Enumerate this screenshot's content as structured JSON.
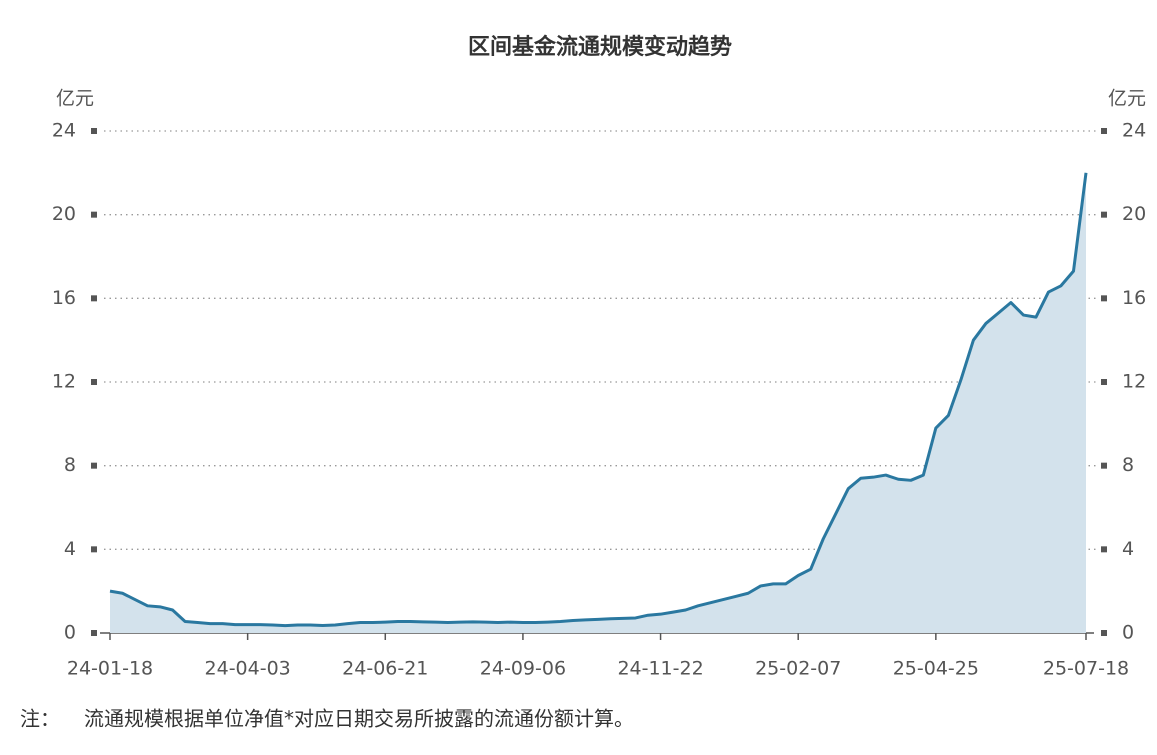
{
  "chart_data": {
    "type": "area",
    "title": "区间基金流通规模变动趋势",
    "y_label": "亿元",
    "y2_label": "亿元",
    "categories": [
      "24-01-18",
      null,
      null,
      null,
      null,
      null,
      null,
      null,
      null,
      null,
      null,
      "24-04-03",
      null,
      null,
      null,
      null,
      null,
      null,
      null,
      null,
      null,
      null,
      "24-06-21",
      null,
      null,
      null,
      null,
      null,
      null,
      null,
      null,
      null,
      null,
      "24-09-06",
      null,
      null,
      null,
      null,
      null,
      null,
      null,
      null,
      null,
      null,
      "24-11-22",
      null,
      null,
      null,
      null,
      null,
      null,
      null,
      null,
      null,
      null,
      "25-02-07",
      null,
      null,
      null,
      null,
      null,
      null,
      null,
      null,
      null,
      null,
      "25-04-25",
      null,
      null,
      null,
      null,
      null,
      null,
      null,
      null,
      null,
      null,
      null,
      "25-07-18"
    ],
    "series": [
      {
        "color": "#2a78a0",
        "fill": "#d3e2ec",
        "axis": "y",
        "values": [
          2.0,
          1.9,
          1.6,
          1.3,
          1.25,
          1.1,
          0.55,
          0.5,
          0.45,
          0.45,
          0.4,
          0.4,
          0.4,
          0.38,
          0.35,
          0.38,
          0.38,
          0.36,
          0.38,
          0.45,
          0.5,
          0.5,
          0.52,
          0.55,
          0.55,
          0.53,
          0.52,
          0.5,
          0.52,
          0.53,
          0.52,
          0.5,
          0.52,
          0.5,
          0.5,
          0.52,
          0.55,
          0.6,
          0.63,
          0.65,
          0.68,
          0.7,
          0.72,
          0.85,
          0.9,
          1.0,
          1.1,
          1.3,
          1.45,
          1.6,
          1.75,
          1.9,
          2.25,
          2.35,
          2.35,
          2.75,
          3.05,
          4.5,
          5.7,
          6.9,
          7.4,
          7.45,
          7.55,
          7.35,
          7.3,
          7.55,
          9.8,
          10.4,
          12.1,
          14.0,
          14.8,
          15.3,
          15.8,
          15.2,
          15.1,
          16.3,
          16.6,
          17.3,
          22.0
        ]
      }
    ],
    "ylim": [
      0,
      24
    ],
    "yticks": [
      0,
      4,
      8,
      12,
      16,
      20,
      24
    ],
    "y2lim": [
      0,
      24
    ],
    "y2ticks": [
      0,
      4,
      8,
      12,
      16,
      20,
      24
    ],
    "grid": true,
    "note_label": "注：",
    "note": "流通规模根据单位净值*对应日期交易所披露的流通份额计算。"
  }
}
